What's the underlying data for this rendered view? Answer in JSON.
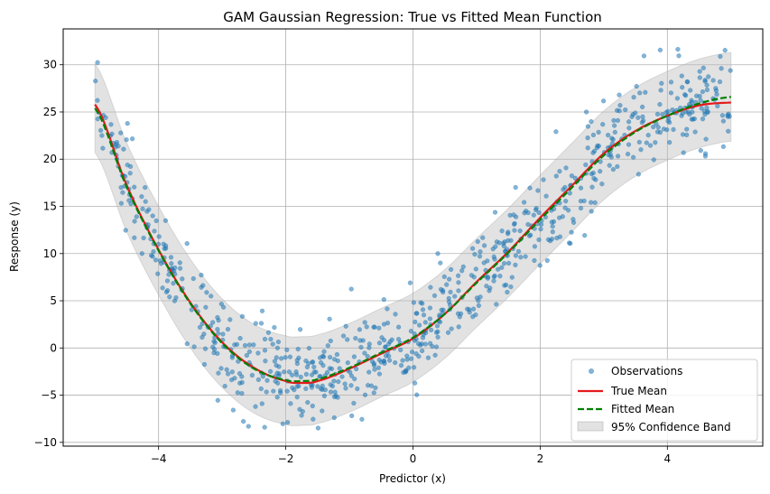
{
  "chart_data": {
    "type": "scatter",
    "title": "GAM Gaussian Regression: True vs Fitted Mean Function",
    "xlabel": "Predictor (x)",
    "ylabel": "Response (y)",
    "xlim": [
      -5.5,
      5.5
    ],
    "ylim": [
      -10.4,
      33.8
    ],
    "xticks": [
      -4,
      -2,
      0,
      2,
      4
    ],
    "yticks": [
      -10,
      -5,
      0,
      5,
      10,
      15,
      20,
      25,
      30
    ],
    "grid": true,
    "legend_position": "bottom-right",
    "x_domain": [
      -5,
      5
    ],
    "series": [
      {
        "name": "Observations",
        "kind": "scatter",
        "color": "#1f77b4",
        "count": 800,
        "noise_sd": 2.5
      },
      {
        "name": "True Mean",
        "kind": "line",
        "color": "#e41a1c",
        "x": [
          -5.0,
          -4.5,
          -4.0,
          -3.5,
          -3.0,
          -2.5,
          -2.0,
          -1.75,
          -1.5,
          -1.0,
          -0.5,
          0.0,
          0.5,
          1.0,
          1.5,
          2.0,
          2.5,
          3.0,
          3.5,
          4.0,
          4.5,
          5.0
        ],
        "y": [
          25.8,
          17.2,
          10.4,
          4.8,
          0.6,
          -2.1,
          -3.5,
          -3.7,
          -3.5,
          -2.2,
          -0.6,
          1.0,
          3.6,
          7.0,
          10.2,
          13.8,
          17.2,
          20.6,
          23.0,
          24.6,
          25.7,
          26.0
        ]
      },
      {
        "name": "Fitted Mean",
        "kind": "dashed-line",
        "color": "#008000",
        "x": [
          -5.0,
          -4.5,
          -4.0,
          -3.5,
          -3.0,
          -2.5,
          -2.0,
          -1.75,
          -1.5,
          -1.0,
          -0.5,
          0.0,
          0.5,
          1.0,
          1.5,
          2.0,
          2.5,
          3.0,
          3.5,
          4.0,
          4.5,
          5.0
        ],
        "y": [
          25.4,
          17.0,
          10.3,
          4.7,
          0.5,
          -2.2,
          -3.4,
          -3.5,
          -3.3,
          -2.1,
          -0.5,
          1.1,
          3.6,
          6.9,
          10.1,
          13.6,
          17.0,
          20.4,
          22.9,
          24.6,
          25.9,
          26.6
        ]
      },
      {
        "name": "95% Confidence Band",
        "kind": "band",
        "color": "#bfbfbf",
        "half_width": 4.7
      }
    ]
  }
}
